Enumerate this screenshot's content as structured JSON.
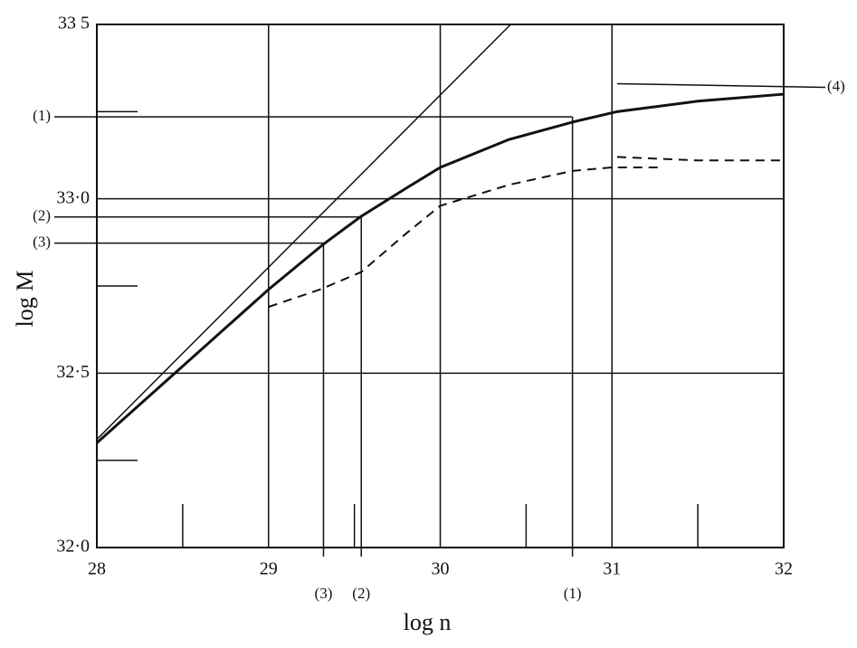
{
  "chart_data": {
    "type": "line",
    "x_label": "log n",
    "y_label": "log M",
    "xlim": [
      28,
      32
    ],
    "ylim": [
      32.0,
      33.5
    ],
    "xticks": [
      28,
      29,
      30,
      31,
      32
    ],
    "yticks": [
      {
        "value": 32.0,
        "label": "32·0"
      },
      {
        "value": 32.5,
        "label": "32·5"
      },
      {
        "value": 33.0,
        "label": "33·0"
      },
      {
        "value": 33.5,
        "label": "33 5"
      }
    ],
    "x_minor_ticks": [
      28.5,
      29.5,
      30.5,
      31.5
    ],
    "y_minor_ticks": [
      32.25,
      32.75,
      33.25
    ],
    "grid": true,
    "series": [
      {
        "color": "#111111",
        "width": 3,
        "dashed": false,
        "x": [
          28.0,
          28.5,
          29.0,
          29.32,
          29.54,
          29.8,
          30.0,
          30.4,
          30.77,
          31.03,
          31.5,
          32.0
        ],
        "values": [
          32.3,
          32.52,
          32.74,
          32.87,
          32.95,
          33.03,
          33.09,
          33.17,
          33.22,
          33.25,
          33.28,
          33.3
        ]
      },
      {
        "color": "#111111",
        "width": 1.5,
        "dashed": false,
        "x": [
          28.0,
          30.41
        ],
        "values": [
          32.31,
          33.5
        ]
      },
      {
        "color": "#111111",
        "width": 2,
        "dashed": true,
        "x": [
          29.0,
          29.3,
          29.54,
          29.8,
          30.0,
          30.4,
          30.77,
          31.0,
          31.28
        ],
        "values": [
          32.69,
          32.74,
          32.79,
          32.9,
          32.98,
          33.04,
          33.08,
          33.09,
          33.09
        ]
      },
      {
        "color": "#111111",
        "width": 2,
        "dashed": true,
        "x": [
          31.03,
          31.5,
          32.0
        ],
        "values": [
          33.12,
          33.11,
          33.11
        ]
      }
    ],
    "markers": [
      {
        "label": "(1)",
        "x": 30.77,
        "y": 33.235
      },
      {
        "label": "(2)",
        "x": 29.54,
        "y": 32.948
      },
      {
        "label": "(3)",
        "x": 29.32,
        "y": 32.873
      }
    ],
    "right_marker": {
      "label": "(4)",
      "x": 31.03,
      "y": 33.33
    }
  }
}
